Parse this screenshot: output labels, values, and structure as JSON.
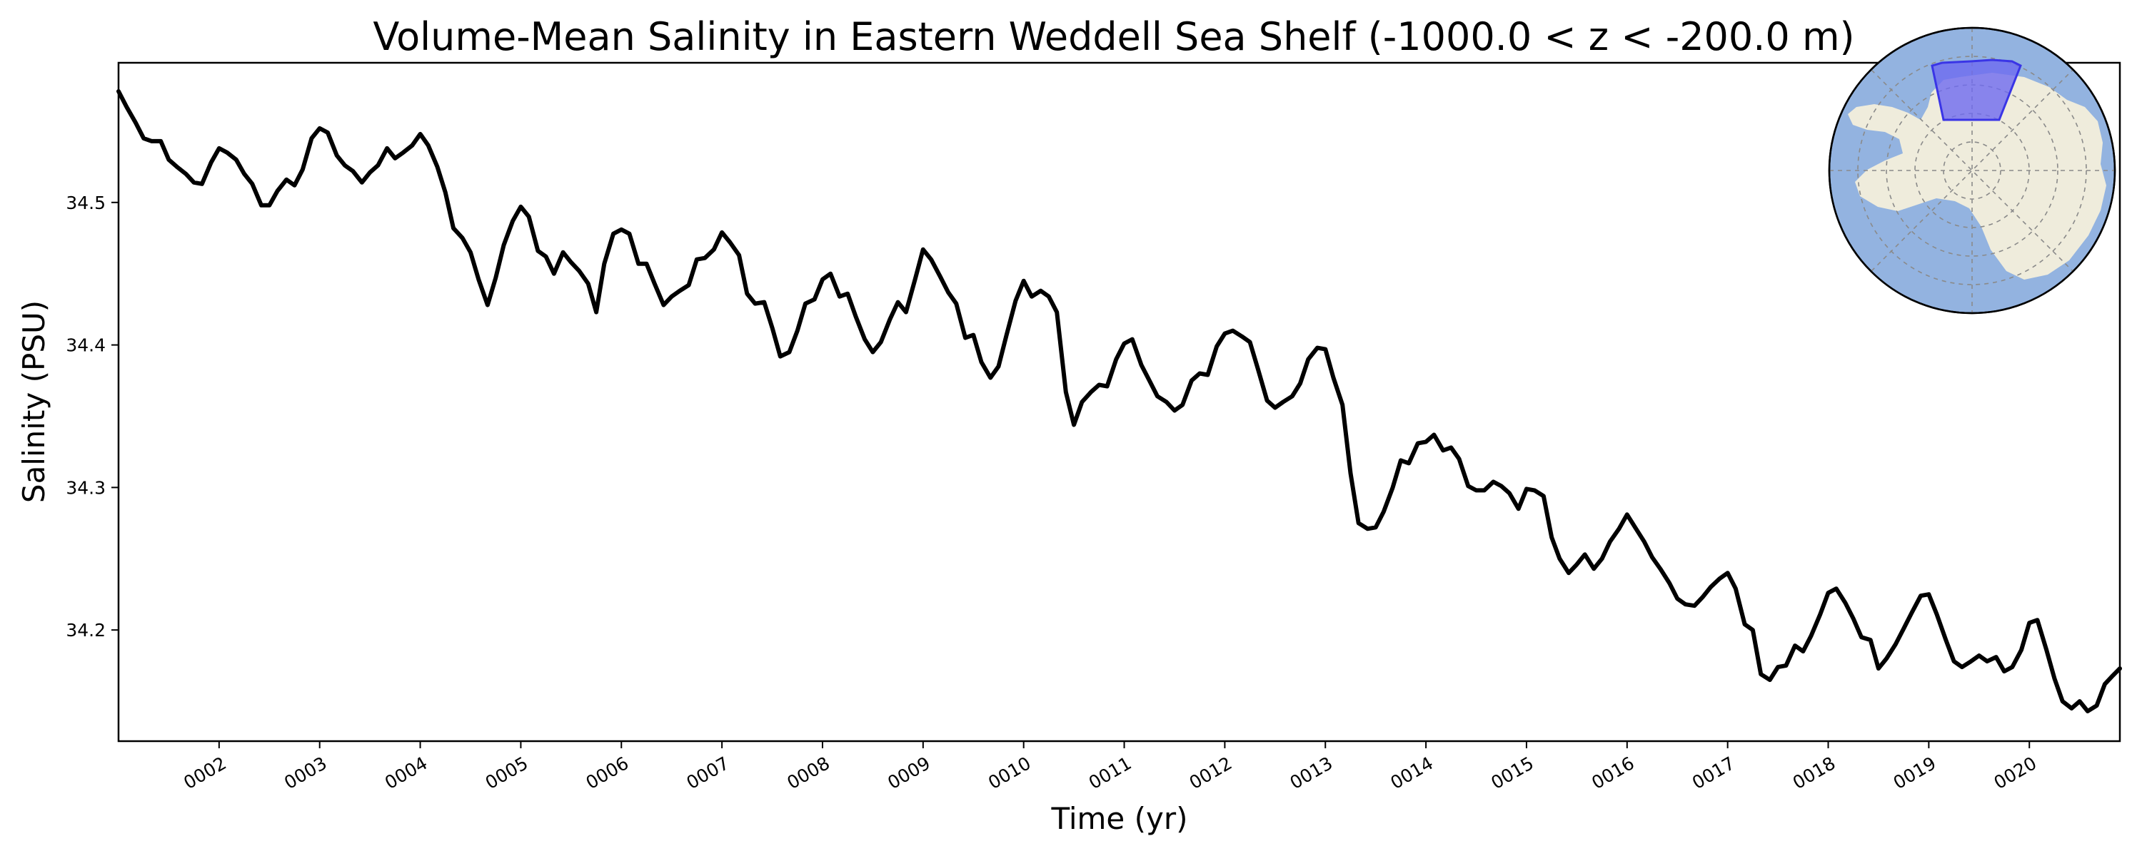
{
  "chart_data": {
    "type": "line",
    "title": "Volume-Mean Salinity in Eastern Weddell Sea Shelf (-1000.0 < z < -200.0 m)",
    "xlabel": "Time (yr)",
    "ylabel": "Salinity (PSU)",
    "xlim": [
      1.0,
      20.9
    ],
    "ylim": [
      34.122,
      34.598
    ],
    "x_ticks": [
      2,
      3,
      4,
      5,
      6,
      7,
      8,
      9,
      10,
      11,
      12,
      13,
      14,
      15,
      16,
      17,
      18,
      19,
      20
    ],
    "x_tick_labels": [
      "0002",
      "0003",
      "0004",
      "0005",
      "0006",
      "0007",
      "0008",
      "0009",
      "0010",
      "0011",
      "0012",
      "0013",
      "0014",
      "0015",
      "0016",
      "0017",
      "0018",
      "0019",
      "0020"
    ],
    "y_ticks": [
      34.2,
      34.3,
      34.4,
      34.5
    ],
    "y_tick_labels": [
      "34.2",
      "34.3",
      "34.4",
      "34.5"
    ],
    "grid": false,
    "inset": "Antarctic polar map with Eastern Weddell Sea shelf region highlighted",
    "series": [
      {
        "name": "salinity",
        "color": "#000000",
        "x": [
          1.0,
          1.08,
          1.17,
          1.25,
          1.33,
          1.42,
          1.5,
          1.58,
          1.67,
          1.75,
          1.83,
          1.92,
          2.0,
          2.08,
          2.17,
          2.25,
          2.33,
          2.42,
          2.5,
          2.58,
          2.67,
          2.75,
          2.83,
          2.92,
          3.0,
          3.08,
          3.17,
          3.25,
          3.33,
          3.42,
          3.5,
          3.58,
          3.67,
          3.75,
          3.83,
          3.92,
          4.0,
          4.08,
          4.17,
          4.25,
          4.33,
          4.42,
          4.5,
          4.58,
          4.67,
          4.75,
          4.83,
          4.92,
          5.0,
          5.08,
          5.17,
          5.25,
          5.33,
          5.42,
          5.5,
          5.58,
          5.67,
          5.75,
          5.83,
          5.92,
          6.0,
          6.08,
          6.17,
          6.25,
          6.33,
          6.42,
          6.5,
          6.58,
          6.67,
          6.75,
          6.83,
          6.92,
          7.0,
          7.08,
          7.17,
          7.25,
          7.33,
          7.42,
          7.5,
          7.58,
          7.67,
          7.75,
          7.83,
          7.92,
          8.0,
          8.08,
          8.17,
          8.25,
          8.33,
          8.42,
          8.5,
          8.58,
          8.67,
          8.75,
          8.83,
          8.92,
          9.0,
          9.08,
          9.17,
          9.25,
          9.33,
          9.42,
          9.5,
          9.58,
          9.67,
          9.75,
          9.83,
          9.92,
          10.0,
          10.08,
          10.17,
          10.25,
          10.33,
          10.42,
          10.5,
          10.58,
          10.67,
          10.75,
          10.83,
          10.92,
          11.0,
          11.08,
          11.17,
          11.25,
          11.33,
          11.42,
          11.5,
          11.58,
          11.67,
          11.75,
          11.83,
          11.92,
          12.0,
          12.08,
          12.17,
          12.25,
          12.33,
          12.42,
          12.5,
          12.58,
          12.67,
          12.75,
          12.83,
          12.92,
          13.0,
          13.08,
          13.17,
          13.25,
          13.33,
          13.42,
          13.5,
          13.58,
          13.67,
          13.75,
          13.83,
          13.92,
          14.0,
          14.08,
          14.17,
          14.25,
          14.33,
          14.42,
          14.5,
          14.58,
          14.67,
          14.75,
          14.83,
          14.92,
          15.0,
          15.08,
          15.17,
          15.25,
          15.33,
          15.42,
          15.5,
          15.58,
          15.67,
          15.75,
          15.83,
          15.92,
          16.0,
          16.08,
          16.17,
          16.25,
          16.33,
          16.42,
          16.5,
          16.58,
          16.67,
          16.75,
          16.83,
          16.92,
          17.0,
          17.08,
          17.17,
          17.25,
          17.33,
          17.42,
          17.5,
          17.58,
          17.67,
          17.75,
          17.83,
          17.92,
          18.0,
          18.08,
          18.17,
          18.25,
          18.33,
          18.42,
          18.5,
          18.58,
          18.67,
          18.75,
          18.83,
          18.92,
          19.0,
          19.08,
          19.17,
          19.25,
          19.33,
          19.42,
          19.5,
          19.58,
          19.67,
          19.75,
          19.83,
          19.92,
          20.0,
          20.08,
          20.17,
          20.25,
          20.33,
          20.42,
          20.5,
          20.58,
          20.67,
          20.75,
          20.83,
          20.9
        ],
        "values": [
          34.578,
          34.567,
          34.556,
          34.545,
          34.543,
          34.543,
          34.53,
          34.525,
          34.52,
          34.514,
          34.513,
          34.528,
          34.538,
          34.535,
          34.53,
          34.52,
          34.513,
          34.498,
          34.498,
          34.508,
          34.516,
          34.512,
          34.523,
          34.545,
          34.552,
          34.549,
          34.533,
          34.526,
          34.522,
          34.514,
          34.521,
          34.526,
          34.538,
          34.531,
          34.535,
          34.54,
          34.548,
          34.54,
          34.525,
          34.507,
          34.482,
          34.475,
          34.465,
          34.446,
          34.428,
          34.447,
          34.47,
          34.487,
          34.497,
          34.49,
          34.466,
          34.462,
          34.45,
          34.465,
          34.458,
          34.452,
          34.443,
          34.423,
          34.457,
          34.478,
          34.481,
          34.478,
          34.457,
          34.457,
          34.443,
          34.428,
          34.434,
          34.438,
          34.442,
          34.46,
          34.461,
          34.467,
          34.479,
          34.472,
          34.463,
          34.436,
          34.429,
          34.43,
          34.412,
          34.392,
          34.395,
          34.41,
          34.429,
          34.432,
          34.446,
          34.45,
          34.434,
          34.436,
          34.42,
          34.404,
          34.395,
          34.402,
          34.418,
          34.43,
          34.423,
          34.446,
          34.467,
          34.46,
          34.448,
          34.437,
          34.429,
          34.405,
          34.407,
          34.388,
          34.377,
          34.385,
          34.407,
          34.431,
          34.445,
          34.434,
          34.438,
          34.434,
          34.423,
          34.367,
          34.344,
          34.36,
          34.367,
          34.372,
          34.371,
          34.39,
          34.401,
          34.404,
          34.386,
          34.375,
          34.364,
          34.36,
          34.354,
          34.358,
          34.375,
          34.38,
          34.379,
          34.399,
          34.408,
          34.41,
          34.406,
          34.402,
          34.383,
          34.361,
          34.356,
          34.36,
          34.364,
          34.373,
          34.39,
          34.398,
          34.397,
          34.377,
          34.358,
          34.31,
          34.275,
          34.271,
          34.272,
          34.283,
          34.3,
          34.319,
          34.317,
          34.331,
          34.332,
          34.337,
          34.326,
          34.328,
          34.32,
          34.301,
          34.298,
          34.298,
          34.304,
          34.301,
          34.296,
          34.285,
          34.299,
          34.298,
          34.294,
          34.265,
          34.25,
          34.24,
          34.246,
          34.253,
          34.243,
          34.25,
          34.262,
          34.271,
          34.281,
          34.272,
          34.262,
          34.251,
          34.243,
          34.233,
          34.222,
          34.218,
          34.217,
          34.223,
          34.23,
          34.236,
          34.24,
          34.229,
          34.204,
          34.2,
          34.169,
          34.165,
          34.174,
          34.175,
          34.189,
          34.185,
          34.196,
          34.211,
          34.226,
          34.229,
          34.219,
          34.208,
          34.195,
          34.193,
          34.173,
          34.18,
          34.19,
          34.201,
          34.212,
          34.224,
          34.225,
          34.211,
          34.193,
          34.178,
          34.174,
          34.178,
          34.182,
          34.178,
          34.181,
          34.171,
          34.174,
          34.186,
          34.205,
          34.207,
          34.186,
          34.166,
          34.15,
          34.145,
          34.15,
          34.143,
          34.147,
          34.162,
          34.168,
          34.173
        ]
      }
    ]
  }
}
